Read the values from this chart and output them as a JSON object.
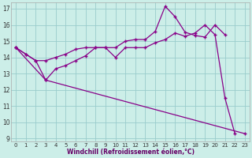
{
  "xlabel": "Windchill (Refroidissement éolien,°C)",
  "bg_color": "#cceee8",
  "line_color": "#880088",
  "grid_color": "#99cccc",
  "xlim": [
    -0.5,
    23.5
  ],
  "ylim": [
    8.8,
    17.4
  ],
  "xticks": [
    0,
    1,
    2,
    3,
    4,
    5,
    6,
    7,
    8,
    9,
    10,
    11,
    12,
    13,
    14,
    15,
    16,
    17,
    18,
    19,
    20,
    21,
    22,
    23
  ],
  "yticks": [
    9,
    10,
    11,
    12,
    13,
    14,
    15,
    16,
    17
  ],
  "line1_y": [
    14.6,
    14.2,
    13.8,
    12.6,
    13.3,
    13.5,
    13.8,
    14.1,
    14.6,
    14.6,
    14.0,
    14.6,
    14.6,
    14.6,
    14.9,
    15.1,
    15.5,
    15.3,
    15.5,
    16.0,
    15.4,
    11.5,
    9.3,
    null
  ],
  "line2_y": [
    14.6,
    14.2,
    13.8,
    13.8,
    14.0,
    14.2,
    14.5,
    14.6,
    14.6,
    14.6,
    14.6,
    15.0,
    15.1,
    15.1,
    15.6,
    17.15,
    16.5,
    15.55,
    15.35,
    15.25,
    16.0,
    15.4,
    null,
    null
  ],
  "line3_y": [
    14.6,
    null,
    null,
    12.6,
    null,
    null,
    null,
    null,
    null,
    null,
    null,
    null,
    null,
    null,
    null,
    null,
    null,
    null,
    null,
    null,
    null,
    null,
    null,
    9.3
  ]
}
